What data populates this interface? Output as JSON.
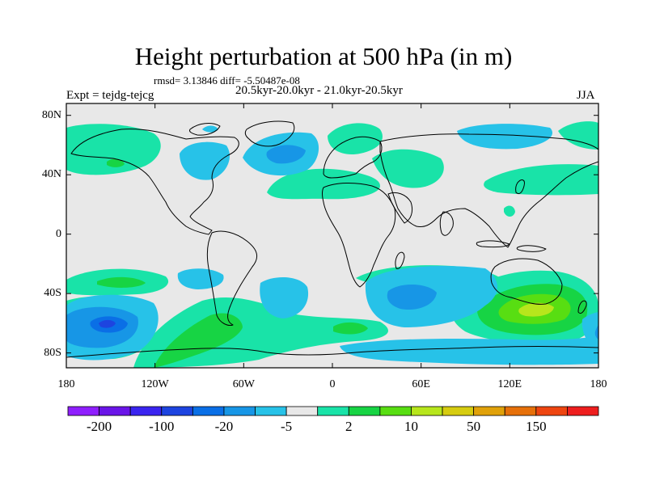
{
  "title": "Height perturbation at 500 hPa (in m)",
  "stats_line": "rmsd= 3.13846  diff= -5.50487e-08",
  "left_label": "Expt = tejdg-tejcg",
  "center_label": "20.5kyr-20.0kyr - 21.0kyr-20.5kyr",
  "right_label": "JJA",
  "lat_ticks": [
    {
      "label": "80N",
      "lat": 80
    },
    {
      "label": "40N",
      "lat": 40
    },
    {
      "label": "0",
      "lat": 0
    },
    {
      "label": "40S",
      "lat": -40
    },
    {
      "label": "80S",
      "lat": -80
    }
  ],
  "lon_ticks": [
    {
      "label": "180",
      "lon": -180
    },
    {
      "label": "120W",
      "lon": -120
    },
    {
      "label": "60W",
      "lon": -60
    },
    {
      "label": "0",
      "lon": 0
    },
    {
      "label": "60E",
      "lon": 60
    },
    {
      "label": "120E",
      "lon": 120
    },
    {
      "label": "180",
      "lon": 180
    }
  ],
  "colorbar": {
    "colors": [
      "#8f1fff",
      "#6a15e8",
      "#3a24f0",
      "#1d44e0",
      "#0a6fe6",
      "#1796e6",
      "#27c2e8",
      "#e8e8e8",
      "#19e3a8",
      "#17d444",
      "#58de12",
      "#b7e61c",
      "#d6cc10",
      "#e0a10a",
      "#e6700a",
      "#ee4510",
      "#ee1e1e"
    ],
    "labels": [
      {
        "text": "-200",
        "index": 1
      },
      {
        "text": "-100",
        "index": 3
      },
      {
        "text": "-20",
        "index": 5
      },
      {
        "text": "-5",
        "index": 7
      },
      {
        "text": "2",
        "index": 9
      },
      {
        "text": "10",
        "index": 11
      },
      {
        "text": "50",
        "index": 13
      },
      {
        "text": "150",
        "index": 15
      }
    ]
  }
}
